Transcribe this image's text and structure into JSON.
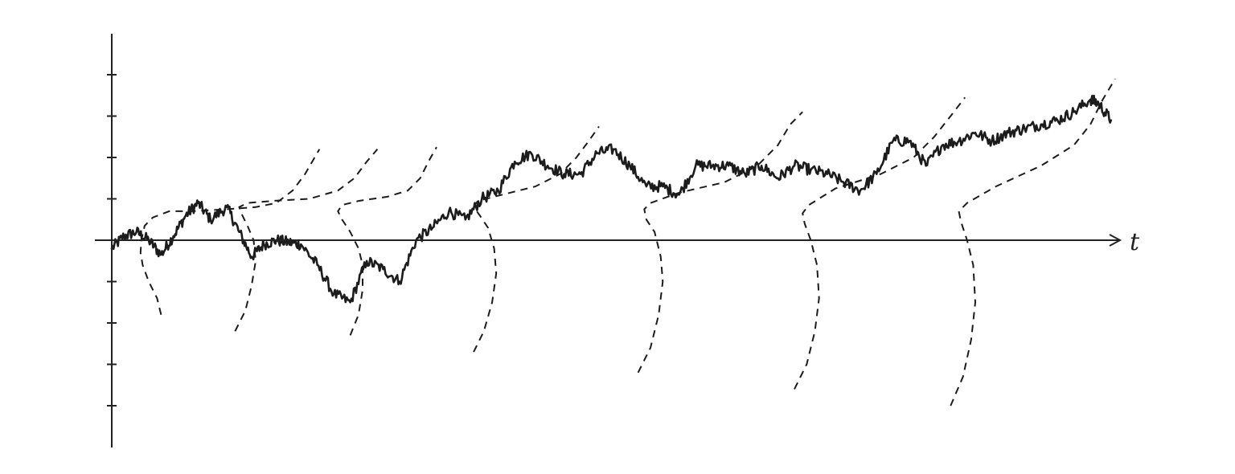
{
  "chart_data": {
    "type": "line",
    "title": "",
    "xlabel": "t",
    "ylabel": "",
    "xlim": [
      0,
      24.5
    ],
    "ylim": [
      -5,
      5
    ],
    "y_ticks": [
      -4,
      -3,
      -2,
      -1,
      1,
      2,
      3,
      4
    ],
    "grid": false,
    "legend": "none",
    "series": [
      {
        "style": "solid",
        "x": [
          0,
          0.3,
          0.6,
          0.9,
          1.2,
          1.5,
          1.8,
          2.1,
          2.4,
          2.8,
          3.1,
          3.4,
          3.7,
          4.0,
          4.3,
          4.6,
          5.0,
          5.4,
          5.8,
          6.2,
          6.6,
          7.0,
          7.4,
          7.8,
          8.2,
          8.6,
          9.0,
          9.4,
          9.8,
          10.2,
          10.6,
          11.0,
          11.4,
          11.8,
          12.2,
          12.6,
          13.0,
          13.4,
          13.8,
          14.2,
          14.6,
          15.0,
          15.4,
          15.8,
          16.2,
          16.6,
          17.0,
          17.4,
          17.8,
          18.2,
          18.6,
          19.0,
          19.4,
          19.8,
          20.2,
          20.6,
          21.0,
          21.4,
          21.8,
          22.2,
          22.6,
          23.0,
          23.4,
          23.8,
          24.0,
          24.3
        ],
        "y": [
          -0.2,
          0.1,
          0.2,
          0.0,
          -0.35,
          0.1,
          0.6,
          0.9,
          0.5,
          0.8,
          0.2,
          -0.4,
          -0.1,
          0.0,
          -0.05,
          -0.1,
          -0.6,
          -1.3,
          -1.5,
          -0.5,
          -0.7,
          -1.0,
          0.0,
          0.3,
          0.7,
          0.5,
          1.0,
          1.2,
          1.9,
          2.1,
          1.8,
          1.6,
          1.6,
          2.1,
          2.2,
          1.8,
          1.3,
          1.3,
          1.1,
          1.8,
          1.8,
          1.8,
          1.6,
          1.8,
          1.5,
          1.8,
          1.7,
          1.6,
          1.4,
          1.2,
          1.6,
          2.4,
          2.4,
          1.8,
          2.3,
          2.4,
          2.6,
          2.4,
          2.6,
          2.7,
          2.8,
          2.9,
          3.1,
          3.4,
          3.3,
          2.9
        ]
      },
      {
        "style": "dashed",
        "x": [
          1.2,
          1.1,
          0.9,
          0.75,
          0.7,
          0.72,
          0.8,
          1.0,
          1.4,
          2.0,
          2.8,
          3.5,
          4.0,
          4.4,
          4.7,
          5.05
        ],
        "y": [
          -1.8,
          -1.4,
          -1.0,
          -0.6,
          -0.3,
          0.0,
          0.35,
          0.55,
          0.7,
          0.7,
          0.75,
          0.8,
          0.9,
          1.2,
          1.6,
          2.2
        ]
      },
      {
        "style": "dashed",
        "x": [
          3.0,
          3.25,
          3.4,
          3.5,
          3.45,
          3.3,
          3.15,
          3.1,
          3.3,
          3.9,
          4.8,
          5.5,
          5.9,
          6.2,
          6.46
        ],
        "y": [
          -2.2,
          -1.7,
          -1.1,
          -0.5,
          0.0,
          0.35,
          0.65,
          0.8,
          0.9,
          0.95,
          1.0,
          1.2,
          1.5,
          1.9,
          2.2
        ]
      },
      {
        "style": "dashed",
        "x": [
          5.8,
          6.0,
          6.1,
          6.1,
          6.0,
          5.8,
          5.6,
          5.5,
          5.6,
          6.0,
          6.7,
          7.2,
          7.5,
          7.7,
          7.9
        ],
        "y": [
          -2.3,
          -1.8,
          -1.2,
          -0.6,
          -0.2,
          0.2,
          0.5,
          0.7,
          0.85,
          0.95,
          1.05,
          1.2,
          1.5,
          1.9,
          2.25
        ]
      },
      {
        "style": "dashed",
        "x": [
          8.8,
          9.05,
          9.25,
          9.35,
          9.3,
          9.15,
          8.95,
          8.8,
          8.9,
          9.5,
          10.3,
          10.9,
          11.3,
          11.6,
          11.85
        ],
        "y": [
          -2.7,
          -2.2,
          -1.5,
          -0.8,
          -0.2,
          0.3,
          0.6,
          0.8,
          0.95,
          1.1,
          1.3,
          1.6,
          2.0,
          2.4,
          2.75
        ]
      },
      {
        "style": "dashed",
        "x": [
          12.8,
          13.1,
          13.3,
          13.4,
          13.35,
          13.2,
          13.0,
          12.95,
          13.1,
          13.8,
          14.9,
          15.7,
          16.2,
          16.5,
          16.8
        ],
        "y": [
          -3.2,
          -2.6,
          -1.8,
          -1.0,
          -0.4,
          0.2,
          0.5,
          0.75,
          0.9,
          1.15,
          1.4,
          1.8,
          2.3,
          2.8,
          3.1
        ]
      },
      {
        "style": "dashed",
        "x": [
          16.6,
          16.9,
          17.1,
          17.2,
          17.15,
          17.0,
          16.85,
          16.8,
          16.95,
          17.6,
          18.7,
          19.5,
          20.0,
          20.4,
          20.75
        ],
        "y": [
          -3.6,
          -3.0,
          -2.2,
          -1.4,
          -0.6,
          0.0,
          0.4,
          0.65,
          0.85,
          1.25,
          1.6,
          2.0,
          2.5,
          3.0,
          3.45
        ]
      },
      {
        "style": "dashed",
        "x": [
          20.4,
          20.7,
          20.9,
          21.0,
          20.95,
          20.8,
          20.65,
          20.6,
          20.8,
          21.5,
          22.6,
          23.4,
          23.8,
          24.1,
          24.4
        ],
        "y": [
          -4.0,
          -3.3,
          -2.4,
          -1.5,
          -0.6,
          0.0,
          0.45,
          0.7,
          0.9,
          1.3,
          1.8,
          2.3,
          2.8,
          3.4,
          3.9
        ]
      }
    ]
  }
}
